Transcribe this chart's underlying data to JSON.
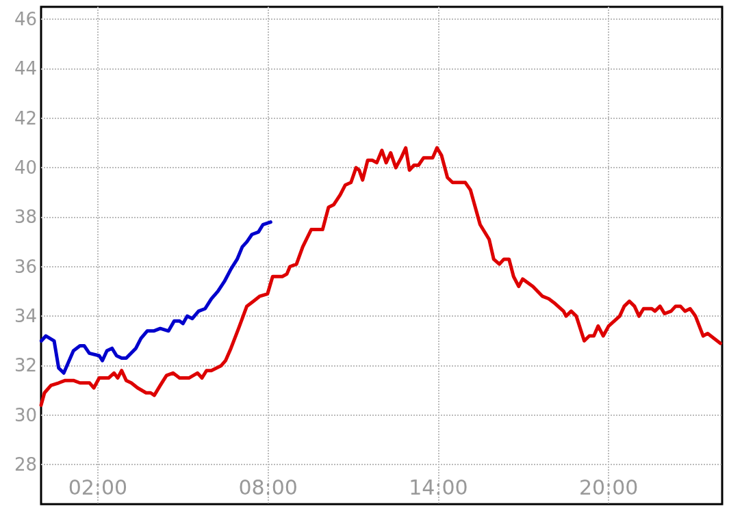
{
  "chart_data": {
    "type": "line",
    "xlim": [
      0,
      24
    ],
    "ylim": [
      26.4,
      46.5
    ],
    "xticks": [
      {
        "value": 2,
        "label": "02:00"
      },
      {
        "value": 8,
        "label": "08:00"
      },
      {
        "value": 14,
        "label": "14:00"
      },
      {
        "value": 20,
        "label": "20:00"
      }
    ],
    "yticks": [
      28,
      30,
      32,
      34,
      36,
      38,
      40,
      42,
      44,
      46
    ],
    "grid": true,
    "line_style": "solid",
    "marker": "none",
    "series": [
      {
        "color": "#0000cc",
        "x": [
          0.01,
          0.17,
          0.46,
          0.62,
          0.8,
          1.14,
          1.37,
          1.52,
          1.7,
          2.05,
          2.16,
          2.32,
          2.5,
          2.66,
          2.84,
          3.0,
          3.34,
          3.52,
          3.74,
          3.97,
          4.2,
          4.49,
          4.69,
          4.88,
          5.0,
          5.15,
          5.33,
          5.55,
          5.78,
          6.0,
          6.23,
          6.46,
          6.69,
          6.91,
          7.09,
          7.25,
          7.43,
          7.66,
          7.82,
          8.09
        ],
        "values": [
          33.0,
          33.2,
          33.0,
          31.9,
          31.7,
          32.6,
          32.8,
          32.8,
          32.5,
          32.4,
          32.2,
          32.6,
          32.7,
          32.4,
          32.3,
          32.3,
          32.7,
          33.1,
          33.4,
          33.4,
          33.5,
          33.4,
          33.8,
          33.8,
          33.7,
          34.0,
          33.9,
          34.2,
          34.3,
          34.7,
          35.0,
          35.4,
          35.9,
          36.3,
          36.8,
          37.0,
          37.3,
          37.4,
          37.7,
          37.8
        ]
      },
      {
        "color": "#dd0000",
        "x": [
          0,
          0.12,
          0.35,
          0.62,
          0.85,
          1.14,
          1.37,
          1.71,
          1.86,
          2.05,
          2.38,
          2.57,
          2.7,
          2.84,
          3.0,
          3.18,
          3.4,
          3.7,
          3.86,
          3.99,
          4.2,
          4.42,
          4.65,
          4.88,
          5.21,
          5.51,
          5.67,
          5.83,
          6.0,
          6.35,
          6.5,
          6.69,
          6.96,
          7.25,
          7.48,
          7.7,
          7.98,
          8.16,
          8.32,
          8.5,
          8.66,
          8.77,
          9.0,
          9.22,
          9.52,
          9.92,
          10.13,
          10.31,
          10.54,
          10.72,
          10.92,
          11.1,
          11.21,
          11.33,
          11.51,
          11.67,
          11.83,
          12.01,
          12.16,
          12.32,
          12.5,
          12.69,
          12.85,
          12.98,
          13.14,
          13.3,
          13.48,
          13.8,
          13.95,
          14.11,
          14.32,
          14.5,
          14.95,
          15.13,
          15.47,
          15.79,
          15.95,
          16.15,
          16.31,
          16.49,
          16.65,
          16.83,
          16.97,
          17.33,
          17.67,
          17.89,
          18.12,
          18.41,
          18.5,
          18.68,
          18.86,
          19.14,
          19.32,
          19.48,
          19.63,
          19.81,
          20.0,
          20.39,
          20.55,
          20.73,
          20.91,
          21.07,
          21.23,
          21.52,
          21.63,
          21.81,
          21.97,
          22.2,
          22.36,
          22.53,
          22.69,
          22.87,
          23.06,
          23.33,
          23.49,
          23.94
        ],
        "values": [
          30.4,
          30.9,
          31.2,
          31.3,
          31.4,
          31.4,
          31.3,
          31.3,
          31.1,
          31.5,
          31.5,
          31.7,
          31.5,
          31.8,
          31.4,
          31.3,
          31.1,
          30.9,
          30.9,
          30.8,
          31.2,
          31.6,
          31.7,
          31.5,
          31.5,
          31.7,
          31.5,
          31.8,
          31.8,
          32.0,
          32.2,
          32.7,
          33.5,
          34.4,
          34.6,
          34.8,
          34.9,
          35.6,
          35.6,
          35.6,
          35.7,
          36.0,
          36.1,
          36.8,
          37.5,
          37.5,
          38.4,
          38.5,
          38.9,
          39.3,
          39.4,
          40.0,
          39.9,
          39.5,
          40.3,
          40.3,
          40.2,
          40.7,
          40.2,
          40.6,
          40.0,
          40.4,
          40.8,
          39.9,
          40.1,
          40.1,
          40.4,
          40.4,
          40.8,
          40.5,
          39.6,
          39.4,
          39.4,
          39.1,
          37.7,
          37.1,
          36.3,
          36.1,
          36.3,
          36.3,
          35.6,
          35.2,
          35.5,
          35.2,
          34.8,
          34.7,
          34.5,
          34.2,
          34.0,
          34.2,
          34.0,
          33.0,
          33.2,
          33.2,
          33.6,
          33.2,
          33.6,
          34.0,
          34.4,
          34.6,
          34.4,
          34.0,
          34.3,
          34.3,
          34.2,
          34.4,
          34.1,
          34.2,
          34.4,
          34.4,
          34.2,
          34.3,
          34.0,
          33.2,
          33.3,
          32.9
        ]
      }
    ]
  }
}
